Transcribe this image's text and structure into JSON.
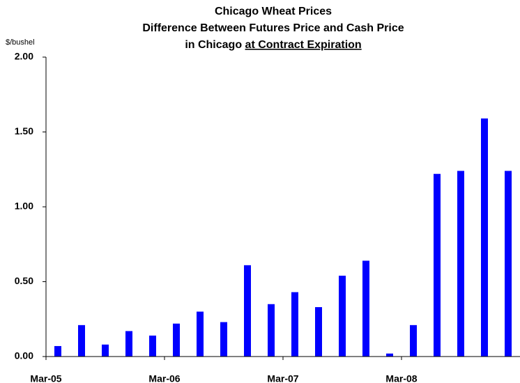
{
  "chart_data": {
    "type": "bar",
    "title": [
      "Chicago Wheat Prices",
      "Difference Between Futures Price and Cash Price",
      "in Chicago"
    ],
    "title_underlined": "at Contract Expiration",
    "ylabel": "$/bushel",
    "categories": [
      "Mar-05",
      null,
      null,
      null,
      null,
      "Mar-06",
      null,
      null,
      null,
      null,
      "Mar-07",
      null,
      null,
      null,
      null,
      "Mar-08",
      null,
      null,
      null,
      null
    ],
    "values": [
      0.07,
      0.21,
      0.08,
      0.17,
      0.14,
      0.22,
      0.3,
      0.23,
      0.61,
      0.35,
      0.43,
      0.33,
      0.54,
      0.64,
      0.02,
      0.21,
      1.22,
      1.24,
      1.59,
      1.24
    ],
    "color": "#0000ff",
    "ylim": [
      0,
      2
    ],
    "yticks": [
      {
        "value": 0,
        "label": "0.00"
      },
      {
        "value": 0.5,
        "label": "0.50"
      },
      {
        "value": 1,
        "label": "1.00"
      },
      {
        "value": 1.5,
        "label": "1.50"
      },
      {
        "value": 2,
        "label": "2.00"
      }
    ],
    "grid": false
  }
}
